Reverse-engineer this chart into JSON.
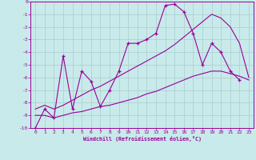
{
  "xlabel": "Windchill (Refroidissement éolien,°C)",
  "bg_color": "#c8eaea",
  "grid_color": "#aacccc",
  "line_color": "#990099",
  "xlim": [
    -0.5,
    23.5
  ],
  "ylim": [
    -10,
    0
  ],
  "xticks": [
    0,
    1,
    2,
    3,
    4,
    5,
    6,
    7,
    8,
    9,
    10,
    11,
    12,
    13,
    14,
    15,
    16,
    17,
    18,
    19,
    20,
    21,
    22,
    23
  ],
  "yticks": [
    0,
    -1,
    -2,
    -3,
    -4,
    -5,
    -6,
    -7,
    -8,
    -9,
    -10
  ],
  "hours": [
    0,
    1,
    2,
    3,
    4,
    5,
    6,
    7,
    8,
    9,
    10,
    11,
    12,
    13,
    14,
    15,
    16,
    17,
    18,
    19,
    20,
    21,
    22,
    23
  ],
  "line_main": [
    -10.0,
    -8.5,
    -9.2,
    -4.3,
    -8.5,
    -5.5,
    -6.3,
    -8.3,
    -7.0,
    -5.5,
    -3.3,
    -3.3,
    -3.0,
    -2.5,
    -0.3,
    -0.2,
    -0.8,
    -2.5,
    -5.0,
    -3.3,
    -4.0,
    -5.5,
    -6.2,
    null
  ],
  "line_min": [
    -9.0,
    -9.0,
    -9.2,
    -9.0,
    -8.8,
    -8.7,
    -8.5,
    -8.3,
    -8.2,
    -8.0,
    -7.8,
    -7.6,
    -7.3,
    -7.1,
    -6.8,
    -6.5,
    -6.2,
    -5.9,
    -5.7,
    -5.5,
    -5.5,
    -5.7,
    -5.9,
    -6.2
  ],
  "line_max": [
    -8.5,
    -8.2,
    -8.5,
    -8.2,
    -7.8,
    -7.4,
    -7.0,
    -6.7,
    -6.3,
    -5.9,
    -5.5,
    -5.1,
    -4.7,
    -4.3,
    -3.9,
    -3.4,
    -2.8,
    -2.2,
    -1.6,
    -1.0,
    -1.3,
    -2.0,
    -3.3,
    -6.0
  ]
}
